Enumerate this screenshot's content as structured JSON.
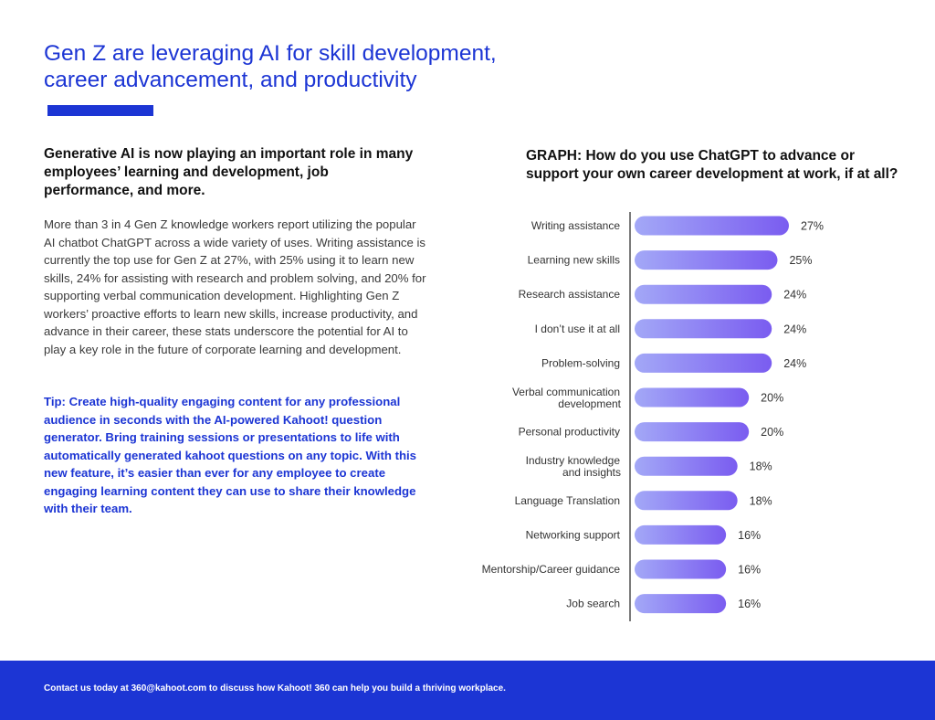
{
  "header": {
    "title_line1": "Gen Z are leveraging AI for skill development,",
    "title_line2": "career advancement, and productivity"
  },
  "left": {
    "heading": "Generative AI is now playing an important role in many employees’ learning and development, job performance, and more.",
    "body": "More than 3 in 4 Gen Z knowledge workers report utilizing the popular AI chatbot ChatGPT across a wide variety of uses. Writing assistance is currently the top use for Gen Z at 27%, with 25% using it to learn new skills, 24% for assisting with research and problem solving, and 20% for supporting verbal communication development. Highlighting Gen Z workers’ proactive efforts to learn new skills, increase productivity, and advance in their career, these stats underscore the potential for AI to play a key role in the future of corporate learning and development.",
    "tip": "Tip: Create high-quality engaging content for any professional audience in seconds with the AI-powered Kahoot! question generator. Bring training sessions or presentations to life with automatically generated kahoot questions on any topic. With this new feature, it’s easier than ever for any employee to create engaging learning content they can use to share their knowledge with their team."
  },
  "footer": {
    "text": "Contact us today at 360@kahoot.com to discuss how Kahoot! 360 can help you build a thriving workplace."
  },
  "colors": {
    "brand_blue": "#1c35d4",
    "bar_gradient_start": "#a3a8f7",
    "bar_gradient_end": "#7a5cf0"
  },
  "chart_data": {
    "type": "bar",
    "orientation": "horizontal",
    "title": "GRAPH: How do you use ChatGPT to advance or support your own career development at work, if at all?",
    "categories": [
      "Writing assistance",
      "Learning new skills",
      "Research assistance",
      "I don’t use it at all",
      "Problem-solving",
      "Verbal communication development",
      "Personal productivity",
      "Industry knowledge and insights",
      "Language Translation",
      "Networking support",
      "Mentorship/Career guidance",
      "Job search"
    ],
    "values": [
      27,
      25,
      24,
      24,
      24,
      20,
      20,
      18,
      18,
      16,
      16,
      16
    ],
    "value_labels": [
      "27%",
      "25%",
      "24%",
      "24%",
      "24%",
      "20%",
      "20%",
      "18%",
      "18%",
      "16%",
      "16%",
      "16%"
    ],
    "unit": "%",
    "xlim": [
      0,
      27
    ],
    "grid": false,
    "legend": false
  }
}
